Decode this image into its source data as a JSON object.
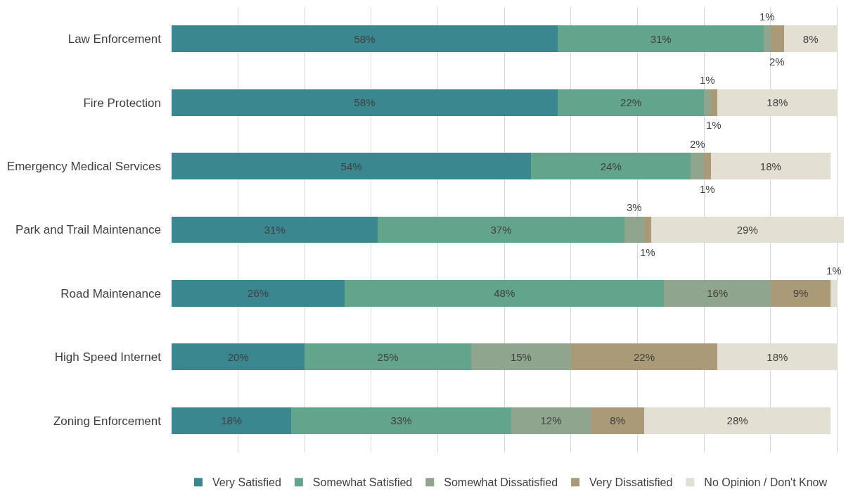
{
  "chart_data": {
    "type": "bar",
    "orientation": "horizontal",
    "stacked": true,
    "categories": [
      "Law Enforcement",
      "Fire Protection",
      "Emergency Medical Services",
      "Park and Trail Maintenance",
      "Road Maintenance",
      "High Speed Internet",
      "Zoning Enforcement"
    ],
    "series": [
      {
        "name": "Very Satisfied",
        "color": "#3a8790",
        "values": [
          58,
          58,
          54,
          31,
          26,
          20,
          18
        ],
        "value_labels": [
          "58%",
          "58%",
          "54%",
          "31%",
          "26%",
          "20%",
          "18%"
        ]
      },
      {
        "name": "Somewhat Satisfied",
        "color": "#62a58c",
        "values": [
          31,
          22,
          24,
          37,
          48,
          25,
          33
        ],
        "value_labels": [
          "31%",
          "22%",
          "24%",
          "37%",
          "48%",
          "25%",
          "33%"
        ]
      },
      {
        "name": "Somewhat Dissatisfied",
        "color": "#8fa58d",
        "values": [
          1,
          1,
          2,
          3,
          16,
          15,
          12
        ],
        "value_labels": [
          "1%",
          "1%",
          "2%",
          "3%",
          "16%",
          "15%",
          "12%"
        ]
      },
      {
        "name": "Very Dissatisfied",
        "color": "#ab9a78",
        "values": [
          2,
          1,
          1,
          1,
          9,
          22,
          8
        ],
        "value_labels": [
          "2%",
          "1%",
          "1%",
          "1%",
          "9%",
          "22%",
          "8%"
        ]
      },
      {
        "name": "No Opinion / Don't Know",
        "color": "#e3dfd3",
        "values": [
          8,
          18,
          18,
          29,
          1,
          18,
          28
        ],
        "value_labels": [
          "8%",
          "18%",
          "18%",
          "29%",
          "1%",
          "18%",
          "28%"
        ]
      }
    ],
    "xlim": [
      0,
      101
    ],
    "grid": "x",
    "tick_labels": "y",
    "legend": "bottom"
  }
}
